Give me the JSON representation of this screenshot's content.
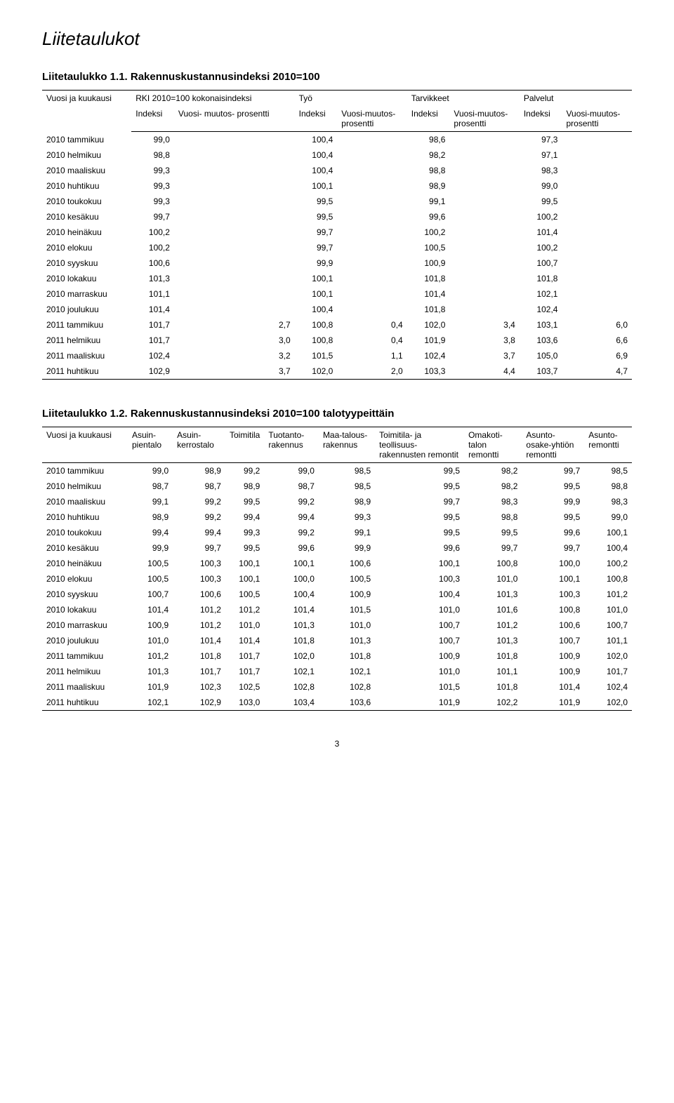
{
  "page_title": "Liitetaulukot",
  "page_number": "3",
  "table1": {
    "title": "Liitetaulukko 1.1. Rakennuskustannusindeksi 2010=100",
    "header_row1": {
      "c1": "Vuosi ja kuukausi",
      "c2": "RKI 2010=100 kokonaisindeksi",
      "c3": "Työ",
      "c4": "Tarvikkeet",
      "c5": "Palvelut"
    },
    "header_row2": {
      "c2a": "Indeksi",
      "c2b": "Vuosi- muutos- prosentti",
      "c3a": "Indeksi",
      "c3b": "Vuosi-muutos-prosentti",
      "c4a": "Indeksi",
      "c4b": "Vuosi-muutos-prosentti",
      "c5a": "Indeksi",
      "c5b": "Vuosi-muutos-prosentti"
    },
    "rows": [
      {
        "label": "2010 tammikuu",
        "v": [
          "99,0",
          "",
          "100,4",
          "",
          "98,6",
          "",
          "97,3",
          ""
        ]
      },
      {
        "label": "2010 helmikuu",
        "v": [
          "98,8",
          "",
          "100,4",
          "",
          "98,2",
          "",
          "97,1",
          ""
        ]
      },
      {
        "label": "2010 maaliskuu",
        "v": [
          "99,3",
          "",
          "100,4",
          "",
          "98,8",
          "",
          "98,3",
          ""
        ]
      },
      {
        "label": "2010 huhtikuu",
        "v": [
          "99,3",
          "",
          "100,1",
          "",
          "98,9",
          "",
          "99,0",
          ""
        ]
      },
      {
        "label": "2010 toukokuu",
        "v": [
          "99,3",
          "",
          "99,5",
          "",
          "99,1",
          "",
          "99,5",
          ""
        ]
      },
      {
        "label": "2010 kesäkuu",
        "v": [
          "99,7",
          "",
          "99,5",
          "",
          "99,6",
          "",
          "100,2",
          ""
        ]
      },
      {
        "label": "2010 heinäkuu",
        "v": [
          "100,2",
          "",
          "99,7",
          "",
          "100,2",
          "",
          "101,4",
          ""
        ]
      },
      {
        "label": "2010 elokuu",
        "v": [
          "100,2",
          "",
          "99,7",
          "",
          "100,5",
          "",
          "100,2",
          ""
        ]
      },
      {
        "label": "2010 syyskuu",
        "v": [
          "100,6",
          "",
          "99,9",
          "",
          "100,9",
          "",
          "100,7",
          ""
        ]
      },
      {
        "label": "2010 lokakuu",
        "v": [
          "101,3",
          "",
          "100,1",
          "",
          "101,8",
          "",
          "101,8",
          ""
        ]
      },
      {
        "label": "2010 marraskuu",
        "v": [
          "101,1",
          "",
          "100,1",
          "",
          "101,4",
          "",
          "102,1",
          ""
        ]
      },
      {
        "label": "2010 joulukuu",
        "v": [
          "101,4",
          "",
          "100,4",
          "",
          "101,8",
          "",
          "102,4",
          ""
        ]
      },
      {
        "label": "2011 tammikuu",
        "v": [
          "101,7",
          "2,7",
          "100,8",
          "0,4",
          "102,0",
          "3,4",
          "103,1",
          "6,0"
        ]
      },
      {
        "label": "2011 helmikuu",
        "v": [
          "101,7",
          "3,0",
          "100,8",
          "0,4",
          "101,9",
          "3,8",
          "103,6",
          "6,6"
        ]
      },
      {
        "label": "2011 maaliskuu",
        "v": [
          "102,4",
          "3,2",
          "101,5",
          "1,1",
          "102,4",
          "3,7",
          "105,0",
          "6,9"
        ]
      },
      {
        "label": "2011 huhtikuu",
        "v": [
          "102,9",
          "3,7",
          "102,0",
          "2,0",
          "103,3",
          "4,4",
          "103,7",
          "4,7"
        ]
      }
    ]
  },
  "table2": {
    "title": "Liitetaulukko 1.2. Rakennuskustannusindeksi 2010=100 talotyypeittäin",
    "headers": [
      "Vuosi ja kuukausi",
      "Asuin-pientalo",
      "Asuin-kerrostalo",
      "Toimitila",
      "Tuotanto-rakennus",
      "Maa-talous-rakennus",
      "Toimitila- ja teollisuus-rakennusten remontit",
      "Omakoti-talon remontti",
      "Asunto-osake-yhtiön remontti",
      "Asunto-remontti"
    ],
    "rows": [
      {
        "label": "2010 tammikuu",
        "v": [
          "99,0",
          "98,9",
          "99,2",
          "99,0",
          "98,5",
          "99,5",
          "98,2",
          "99,7",
          "98,5"
        ]
      },
      {
        "label": "2010 helmikuu",
        "v": [
          "98,7",
          "98,7",
          "98,9",
          "98,7",
          "98,5",
          "99,5",
          "98,2",
          "99,5",
          "98,8"
        ]
      },
      {
        "label": "2010 maaliskuu",
        "v": [
          "99,1",
          "99,2",
          "99,5",
          "99,2",
          "98,9",
          "99,7",
          "98,3",
          "99,9",
          "98,3"
        ]
      },
      {
        "label": "2010 huhtikuu",
        "v": [
          "98,9",
          "99,2",
          "99,4",
          "99,4",
          "99,3",
          "99,5",
          "98,8",
          "99,5",
          "99,0"
        ]
      },
      {
        "label": "2010 toukokuu",
        "v": [
          "99,4",
          "99,4",
          "99,3",
          "99,2",
          "99,1",
          "99,5",
          "99,5",
          "99,6",
          "100,1"
        ]
      },
      {
        "label": "2010 kesäkuu",
        "v": [
          "99,9",
          "99,7",
          "99,5",
          "99,6",
          "99,9",
          "99,6",
          "99,7",
          "99,7",
          "100,4"
        ]
      },
      {
        "label": "2010 heinäkuu",
        "v": [
          "100,5",
          "100,3",
          "100,1",
          "100,1",
          "100,6",
          "100,1",
          "100,8",
          "100,0",
          "100,2"
        ]
      },
      {
        "label": "2010 elokuu",
        "v": [
          "100,5",
          "100,3",
          "100,1",
          "100,0",
          "100,5",
          "100,3",
          "101,0",
          "100,1",
          "100,8"
        ]
      },
      {
        "label": "2010 syyskuu",
        "v": [
          "100,7",
          "100,6",
          "100,5",
          "100,4",
          "100,9",
          "100,4",
          "101,3",
          "100,3",
          "101,2"
        ]
      },
      {
        "label": "2010 lokakuu",
        "v": [
          "101,4",
          "101,2",
          "101,2",
          "101,4",
          "101,5",
          "101,0",
          "101,6",
          "100,8",
          "101,0"
        ]
      },
      {
        "label": "2010 marraskuu",
        "v": [
          "100,9",
          "101,2",
          "101,0",
          "101,3",
          "101,0",
          "100,7",
          "101,2",
          "100,6",
          "100,7"
        ]
      },
      {
        "label": "2010 joulukuu",
        "v": [
          "101,0",
          "101,4",
          "101,4",
          "101,8",
          "101,3",
          "100,7",
          "101,3",
          "100,7",
          "101,1"
        ]
      },
      {
        "label": "2011 tammikuu",
        "v": [
          "101,2",
          "101,8",
          "101,7",
          "102,0",
          "101,8",
          "100,9",
          "101,8",
          "100,9",
          "102,0"
        ]
      },
      {
        "label": "2011 helmikuu",
        "v": [
          "101,3",
          "101,7",
          "101,7",
          "102,1",
          "102,1",
          "101,0",
          "101,1",
          "100,9",
          "101,7"
        ]
      },
      {
        "label": "2011 maaliskuu",
        "v": [
          "101,9",
          "102,3",
          "102,5",
          "102,8",
          "102,8",
          "101,5",
          "101,8",
          "101,4",
          "102,4"
        ]
      },
      {
        "label": "2011 huhtikuu",
        "v": [
          "102,1",
          "102,9",
          "103,0",
          "103,4",
          "103,6",
          "101,9",
          "102,2",
          "101,9",
          "102,0"
        ]
      }
    ]
  }
}
